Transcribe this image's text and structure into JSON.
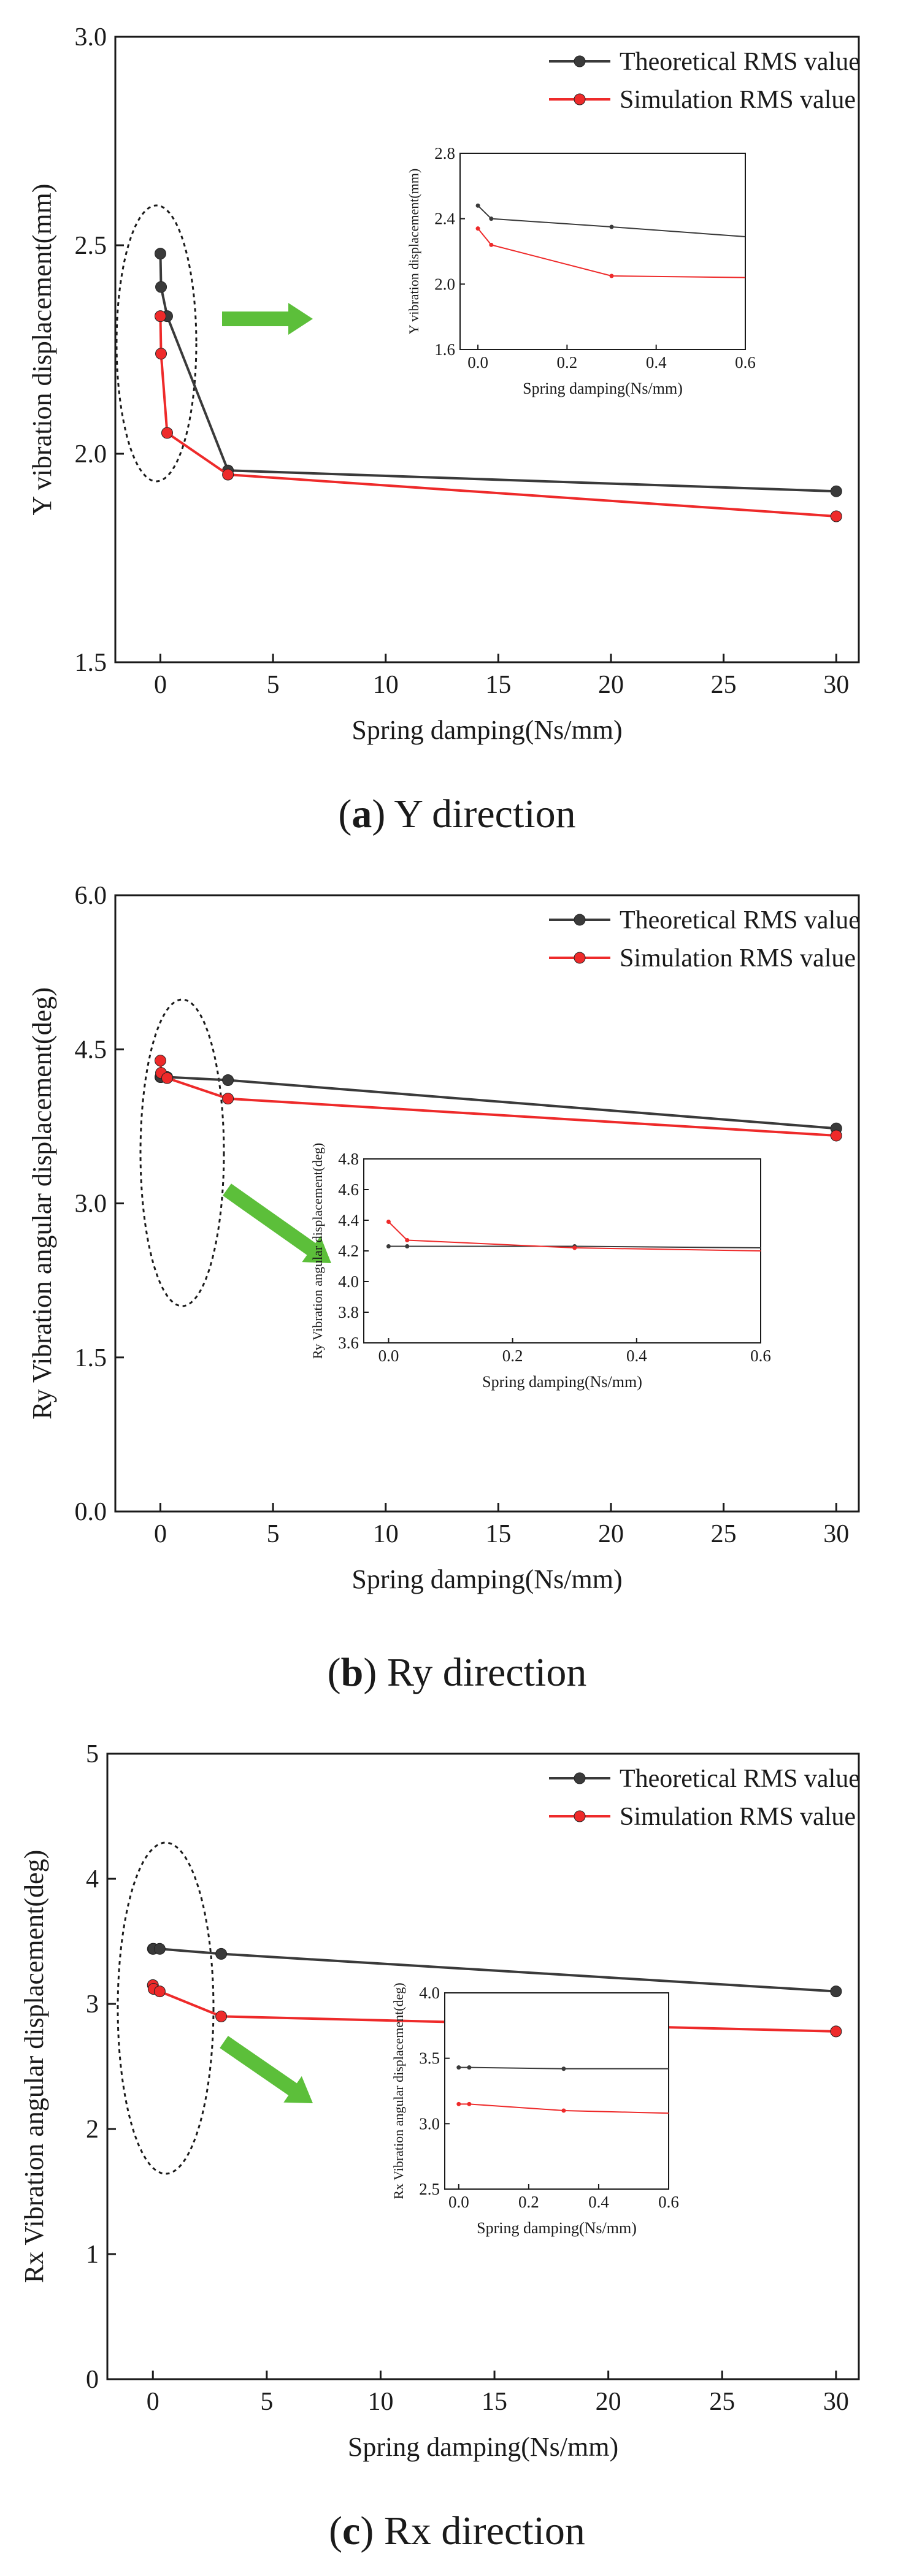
{
  "legend": {
    "theoretical": "Theoretical RMS value",
    "simulation": "Simulation RMS value"
  },
  "colors": {
    "theoretical": "#3a3a3a",
    "simulation": "#ee2a2a",
    "arrow": "#5cbf3a"
  },
  "chart_data": [
    {
      "id": "a",
      "type": "line",
      "caption_letter": "a",
      "caption_text": "Y direction",
      "xlabel": "Spring damping(Ns/mm)",
      "ylabel": "Y vibration displacement(mm)",
      "xlim": [
        -2,
        31
      ],
      "ylim": [
        1.5,
        3.0
      ],
      "xticks": [
        0,
        5,
        10,
        15,
        20,
        25,
        30
      ],
      "yticks": [
        1.5,
        2.0,
        2.5,
        3.0
      ],
      "ytick_labels": [
        "1.5",
        "2.0",
        "2.5",
        "3.0"
      ],
      "series": [
        {
          "name": "Theoretical RMS value",
          "x": [
            0,
            0.03,
            0.3,
            3,
            30
          ],
          "y": [
            2.48,
            2.4,
            2.33,
            1.96,
            1.91
          ]
        },
        {
          "name": "Simulation RMS value",
          "x": [
            0,
            0.03,
            0.3,
            3,
            30
          ],
          "y": [
            2.33,
            2.24,
            2.05,
            1.95,
            1.85
          ]
        }
      ],
      "inset": {
        "xlabel": "Spring damping(Ns/mm)",
        "ylabel": "Y vibration displacement(mm)",
        "xlim": [
          -0.04,
          0.6
        ],
        "ylim": [
          1.6,
          2.8
        ],
        "xticks": [
          0.0,
          0.2,
          0.4,
          0.6
        ],
        "xtick_labels": [
          "0.0",
          "0.2",
          "0.4",
          "0.6"
        ],
        "yticks": [
          1.6,
          2.0,
          2.4,
          2.8
        ],
        "ytick_labels": [
          "1.6",
          "2.0",
          "2.4",
          "2.8"
        ],
        "series": [
          {
            "name": "Theoretical RMS value",
            "x": [
              0,
              0.03,
              0.3,
              0.6
            ],
            "y": [
              2.48,
              2.4,
              2.35,
              2.29
            ]
          },
          {
            "name": "Simulation RMS value",
            "x": [
              0,
              0.03,
              0.3,
              0.6
            ],
            "y": [
              2.34,
              2.24,
              2.05,
              2.04
            ]
          }
        ]
      }
    },
    {
      "id": "b",
      "type": "line",
      "caption_letter": "b",
      "caption_text": "Ry direction",
      "xlabel": "Spring damping(Ns/mm)",
      "ylabel": "Ry Vibration angular displacement(deg)",
      "xlim": [
        -2,
        31
      ],
      "ylim": [
        0.0,
        6.0
      ],
      "xticks": [
        0,
        5,
        10,
        15,
        20,
        25,
        30
      ],
      "yticks": [
        0.0,
        1.5,
        3.0,
        4.5,
        6.0
      ],
      "ytick_labels": [
        "0.0",
        "1.5",
        "3.0",
        "4.5",
        "6.0"
      ],
      "series": [
        {
          "name": "Theoretical RMS value",
          "x": [
            0,
            0.03,
            0.3,
            3,
            30
          ],
          "y": [
            4.23,
            4.23,
            4.23,
            4.2,
            3.73
          ]
        },
        {
          "name": "Simulation RMS value",
          "x": [
            0,
            0.03,
            0.3,
            3,
            30
          ],
          "y": [
            4.39,
            4.27,
            4.22,
            4.02,
            3.66
          ]
        }
      ],
      "inset": {
        "xlabel": "Spring damping(Ns/mm)",
        "ylabel": "Ry Vibration angular displacement(deg)",
        "xlim": [
          -0.04,
          0.6
        ],
        "ylim": [
          3.6,
          4.8
        ],
        "xticks": [
          0.0,
          0.2,
          0.4,
          0.6
        ],
        "xtick_labels": [
          "0.0",
          "0.2",
          "0.4",
          "0.6"
        ],
        "yticks": [
          3.6,
          3.8,
          4.0,
          4.2,
          4.4,
          4.6,
          4.8
        ],
        "ytick_labels": [
          "3.6",
          "3.8",
          "4.0",
          "4.2",
          "4.4",
          "4.6",
          "4.8"
        ],
        "series": [
          {
            "name": "Theoretical RMS value",
            "x": [
              0,
              0.03,
              0.3,
              0.6
            ],
            "y": [
              4.23,
              4.23,
              4.23,
              4.22
            ]
          },
          {
            "name": "Simulation RMS value",
            "x": [
              0,
              0.03,
              0.3,
              0.6
            ],
            "y": [
              4.39,
              4.27,
              4.22,
              4.2
            ]
          }
        ]
      }
    },
    {
      "id": "c",
      "type": "line",
      "caption_letter": "c",
      "caption_text": "Rx direction",
      "xlabel": "Spring damping(Ns/mm)",
      "ylabel": "Rx Vibration angular displacement(deg)",
      "xlim": [
        -2,
        31
      ],
      "ylim": [
        0,
        5
      ],
      "xticks": [
        0,
        5,
        10,
        15,
        20,
        25,
        30
      ],
      "yticks": [
        0,
        1,
        2,
        3,
        4,
        5
      ],
      "ytick_labels": [
        "0",
        "1",
        "2",
        "3",
        "4",
        "5"
      ],
      "series": [
        {
          "name": "Theoretical RMS value",
          "x": [
            0,
            0.03,
            0.3,
            3,
            30
          ],
          "y": [
            3.44,
            3.44,
            3.44,
            3.4,
            3.1
          ]
        },
        {
          "name": "Simulation RMS value",
          "x": [
            0,
            0.03,
            0.3,
            3,
            30
          ],
          "y": [
            3.15,
            3.12,
            3.1,
            2.9,
            2.78
          ]
        }
      ],
      "inset": {
        "xlabel": "Spring damping(Ns/mm)",
        "ylabel": "Rx Vibration angular displacement(deg)",
        "xlim": [
          -0.04,
          0.6
        ],
        "ylim": [
          2.5,
          4.0
        ],
        "xticks": [
          0.0,
          0.2,
          0.4,
          0.6
        ],
        "xtick_labels": [
          "0.0",
          "0.2",
          "0.4",
          "0.6"
        ],
        "yticks": [
          2.5,
          3.0,
          3.5,
          4.0
        ],
        "ytick_labels": [
          "2.5",
          "3.0",
          "3.5",
          "4.0"
        ],
        "series": [
          {
            "name": "Theoretical RMS value",
            "x": [
              0,
              0.03,
              0.3,
              0.6
            ],
            "y": [
              3.43,
              3.43,
              3.42,
              3.42
            ]
          },
          {
            "name": "Simulation RMS value",
            "x": [
              0,
              0.03,
              0.3,
              0.6
            ],
            "y": [
              3.15,
              3.15,
              3.1,
              3.08
            ]
          }
        ]
      }
    }
  ]
}
